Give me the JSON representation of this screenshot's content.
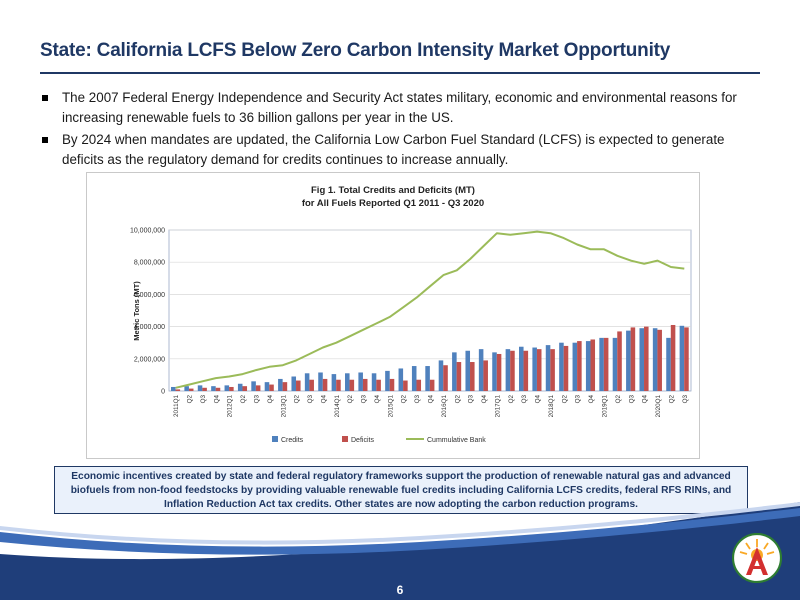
{
  "slide": {
    "title": "State: California LCFS Below Zero Carbon Intensity Market Opportunity",
    "bullets": [
      "The 2007 Federal Energy Independence and Security Act states military, economic and environmental reasons for increasing renewable fuels to 36 billion gallons per year in the US.",
      "By 2024 when mandates are updated, the California Low Carbon Fuel Standard (LCFS) is expected to generate deficits as the regulatory demand for credits continues to increase annually."
    ],
    "callout": "Economic incentives created by state and federal regulatory frameworks support the production of renewable natural gas and advanced biofuels from non-food feedstocks by providing valuable renewable fuel credits including California LCFS credits, federal RFS RINs, and Inflation Reduction Act tax credits.  Other states are now adopting the carbon reduction programs.",
    "page_number": "6"
  },
  "colors": {
    "title": "#1f3864",
    "credits": "#4f81bd",
    "deficits": "#c0504d",
    "bank": "#9bbb59",
    "wave_dark": "#1f3e7a",
    "wave_light": "#3d6cb8"
  },
  "chart_data": {
    "type": "bar",
    "title": "Fig 1. Total Credits and Deficits (MT)",
    "subtitle": "for All Fuels Reported Q1 2011 - Q3 2020",
    "ylabel": "Metric Tons (MT)",
    "xlabel": "",
    "ylim": [
      0,
      10000000
    ],
    "yticks": [
      "0",
      "2,000,000",
      "4,000,000",
      "6,000,000",
      "8,000,000",
      "10,000,000"
    ],
    "categories": [
      "2011Q1",
      "Q2",
      "Q3",
      "Q4",
      "2012Q1",
      "Q2",
      "Q3",
      "Q4",
      "2013Q1",
      "Q2",
      "Q3",
      "Q4",
      "2014Q1",
      "Q2",
      "Q3",
      "Q4",
      "2015Q1",
      "Q2",
      "Q3",
      "Q4",
      "2016Q1",
      "Q2",
      "Q3",
      "Q4",
      "2017Q1",
      "Q2",
      "Q3",
      "Q4",
      "2018Q1",
      "Q2",
      "Q3",
      "Q4",
      "2019Q1",
      "Q2",
      "Q3",
      "Q4",
      "2020Q1",
      "Q2",
      "Q3"
    ],
    "series": [
      {
        "name": "Credits",
        "type": "bar",
        "values": [
          250000,
          300000,
          350000,
          300000,
          350000,
          450000,
          600000,
          550000,
          750000,
          900000,
          1100000,
          1150000,
          1050000,
          1100000,
          1150000,
          1100000,
          1250000,
          1400000,
          1550000,
          1550000,
          1900000,
          2400000,
          2500000,
          2600000,
          2400000,
          2600000,
          2750000,
          2700000,
          2850000,
          3000000,
          3000000,
          3100000,
          3300000,
          3300000,
          3750000,
          3900000,
          3900000,
          3300000,
          4050000
        ]
      },
      {
        "name": "Deficits",
        "type": "bar",
        "values": [
          100000,
          150000,
          200000,
          200000,
          250000,
          300000,
          350000,
          400000,
          550000,
          650000,
          700000,
          750000,
          700000,
          700000,
          750000,
          700000,
          750000,
          650000,
          700000,
          700000,
          1600000,
          1800000,
          1800000,
          1900000,
          2300000,
          2500000,
          2500000,
          2600000,
          2600000,
          2800000,
          3100000,
          3200000,
          3300000,
          3700000,
          3950000,
          4000000,
          3800000,
          4100000,
          3950000
        ]
      },
      {
        "name": "Cummulative Bank",
        "type": "line",
        "values": [
          200000,
          400000,
          600000,
          800000,
          900000,
          1050000,
          1300000,
          1500000,
          1600000,
          1900000,
          2300000,
          2700000,
          3000000,
          3400000,
          3800000,
          4200000,
          4600000,
          5200000,
          5800000,
          6500000,
          7200000,
          7500000,
          8200000,
          9000000,
          9800000,
          9700000,
          9800000,
          9900000,
          9800000,
          9500000,
          9100000,
          8800000,
          8800000,
          8400000,
          8100000,
          7900000,
          8100000,
          7700000,
          7600000
        ]
      }
    ],
    "legend": [
      "Credits",
      "Deficits",
      "Cummulative Bank"
    ],
    "legend_position": "bottom"
  }
}
